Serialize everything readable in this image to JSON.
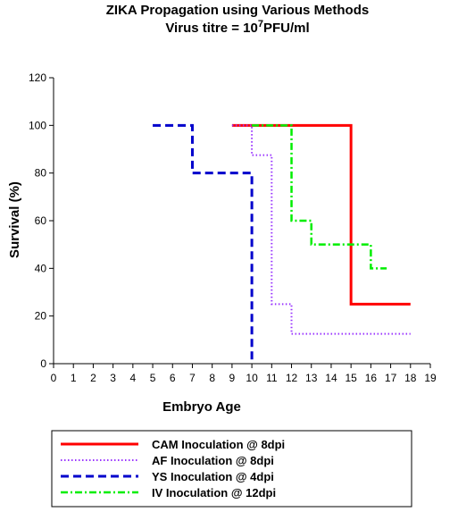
{
  "chart_data": {
    "type": "line",
    "title_main": "ZIKA Propagation using Various Methods",
    "title_sub_prefix": "Virus titre = 10",
    "title_sub_sup": "7",
    "title_sub_suffix": "PFU/ml",
    "xlabel": "Embryo Age",
    "ylabel": "Survival (%)",
    "xlim": [
      0,
      19
    ],
    "ylim": [
      0,
      120
    ],
    "x_ticks": [
      0,
      1,
      2,
      3,
      4,
      5,
      6,
      7,
      8,
      9,
      10,
      11,
      12,
      13,
      14,
      15,
      16,
      17,
      18,
      19
    ],
    "y_ticks": [
      0,
      20,
      40,
      60,
      80,
      100,
      120
    ],
    "grid": false,
    "legend_position": "bottom",
    "series": [
      {
        "name": "CAM Inoculation @ 8dpi",
        "color": "#ff0000",
        "style": "solid",
        "x": [
          9,
          15,
          15,
          18
        ],
        "y": [
          100,
          100,
          25,
          25
        ]
      },
      {
        "name": "AF Inoculation @ 8dpi",
        "color": "#9933ff",
        "style": "dotted",
        "x": [
          9,
          10,
          10,
          11,
          11,
          12,
          12,
          18
        ],
        "y": [
          100,
          100,
          87.5,
          87.5,
          25,
          25,
          12.5,
          12.5
        ]
      },
      {
        "name": "YS Inoculation @ 4dpi",
        "color": "#0000cc",
        "style": "dashed",
        "x": [
          5,
          7,
          7,
          10,
          10
        ],
        "y": [
          100,
          100,
          80,
          80,
          0
        ]
      },
      {
        "name": "IV Inoculation @ 12dpi",
        "color": "#00ee00",
        "style": "dashdot",
        "x": [
          10,
          12,
          12,
          13,
          13,
          16,
          16,
          16.8
        ],
        "y": [
          100,
          100,
          60,
          60,
          50,
          50,
          40,
          40
        ]
      }
    ]
  }
}
